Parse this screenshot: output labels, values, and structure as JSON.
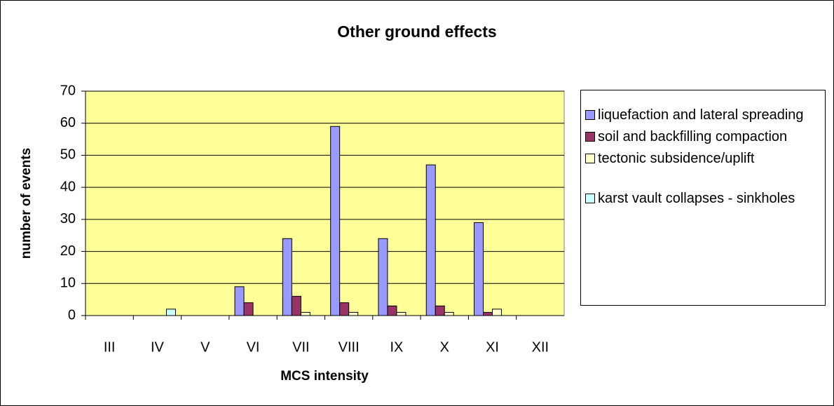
{
  "chart_data": {
    "type": "bar",
    "title": "Other ground effects",
    "x_label": "MCS intensity",
    "y_label": "number of events",
    "categories": [
      "III",
      "IV",
      "V",
      "VI",
      "VII",
      "VIII",
      "IX",
      "X",
      "XI",
      "XII"
    ],
    "series": [
      {
        "name": "liquefaction and lateral spreading",
        "color": "#9999ff",
        "values": [
          0,
          0,
          0,
          9,
          24,
          59,
          24,
          47,
          29,
          0
        ]
      },
      {
        "name": "soil and backfilling compaction",
        "color": "#993366",
        "values": [
          0,
          0,
          0,
          4,
          6,
          4,
          3,
          3,
          1,
          0
        ]
      },
      {
        "name": "tectonic subsidence/uplift",
        "color": "#ffffcc",
        "values": [
          0,
          0,
          0,
          0,
          1,
          1,
          1,
          1,
          2,
          0
        ]
      },
      {
        "name": "karst vault collapses - sinkholes",
        "color": "#ccffff",
        "values": [
          0,
          2,
          0,
          0,
          0,
          0,
          0,
          0,
          0,
          0
        ]
      }
    ],
    "ylim": [
      0,
      70
    ],
    "yticks": [
      0,
      10,
      20,
      30,
      40,
      50,
      60,
      70
    ],
    "grid": true,
    "plot_background": "#ffff99",
    "legend": "right"
  }
}
